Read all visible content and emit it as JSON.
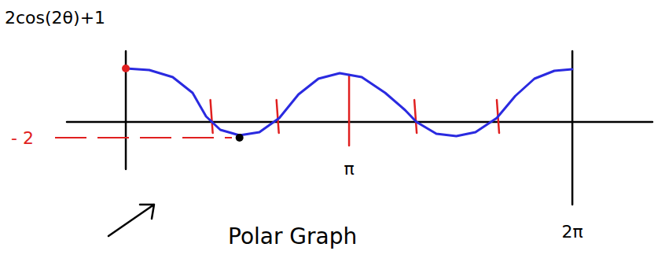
{
  "chart_data": {
    "type": "line",
    "title": "Polar Graph",
    "ylabel": "2cos(2θ)+1",
    "x": [
      0,
      0.33,
      0.66,
      0.94,
      1.13,
      1.33,
      1.6,
      1.88,
      2.16,
      2.43,
      2.71,
      3.01,
      3.32,
      3.65,
      3.93,
      4.09,
      4.37,
      4.65,
      4.92,
      5.22,
      5.48,
      5.75,
      6.03,
      6.28
    ],
    "series": [
      {
        "name": "2cos(2θ)+1",
        "color": "#2a2ae0",
        "values": [
          6.8,
          6.6,
          5.7,
          3.7,
          0.7,
          -1.0,
          -1.7,
          -1.3,
          0.5,
          3.5,
          5.5,
          6.2,
          5.7,
          3.7,
          1.5,
          0,
          -1.5,
          -1.8,
          -1.3,
          0.5,
          3.3,
          5.5,
          6.5,
          6.7
        ]
      }
    ],
    "points": [
      {
        "x": 0,
        "y": 6.8,
        "color": "#e02020"
      },
      {
        "x": 1.6,
        "y": -2,
        "color": "#000000"
      }
    ],
    "vlines": [
      1.19,
      2.12,
      4.06,
      5.22
    ],
    "xlim": [
      -0.83,
      7.41
    ],
    "ylim": [
      -6,
      9
    ],
    "xticks": [
      {
        "value": 3.1416,
        "label": "π"
      },
      {
        "value": 6.2832,
        "label": "2π"
      }
    ],
    "yticks": [
      {
        "value": -2,
        "label": "- 2"
      }
    ],
    "grid": false
  }
}
